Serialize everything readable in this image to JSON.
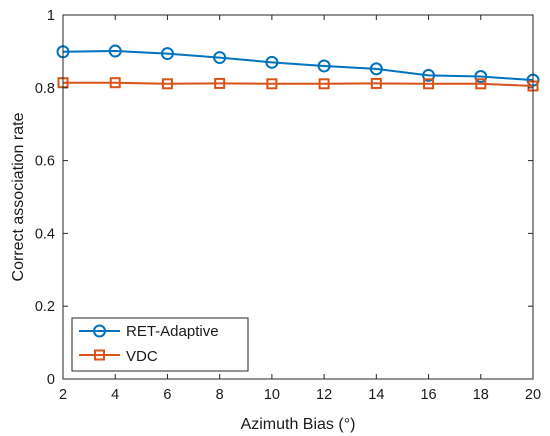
{
  "chart_data": {
    "type": "line",
    "title": "",
    "xlabel": "Azimuth Bias (°)",
    "ylabel": "Correct association rate",
    "xlim": [
      2,
      20
    ],
    "ylim": [
      0,
      1
    ],
    "xticks": [
      2,
      4,
      6,
      8,
      10,
      12,
      14,
      16,
      18,
      20
    ],
    "yticks": [
      0,
      0.2,
      0.4,
      0.6,
      0.8,
      1
    ],
    "ytick_labels": [
      "0",
      "0.2",
      "0.4",
      "0.6",
      "0.8",
      "1"
    ],
    "grid": false,
    "legend_position": "bottom-left",
    "x": [
      2,
      4,
      6,
      8,
      10,
      12,
      14,
      16,
      18,
      20
    ],
    "series": [
      {
        "name": "RET-Adaptive",
        "color": "#0072BD",
        "marker": "circle",
        "values": [
          0.899,
          0.901,
          0.894,
          0.883,
          0.87,
          0.86,
          0.852,
          0.834,
          0.831,
          0.821
        ]
      },
      {
        "name": "VDC",
        "color": "#D95319",
        "marker": "square",
        "values": [
          0.814,
          0.814,
          0.811,
          0.812,
          0.811,
          0.811,
          0.812,
          0.811,
          0.811,
          0.805
        ]
      }
    ]
  }
}
